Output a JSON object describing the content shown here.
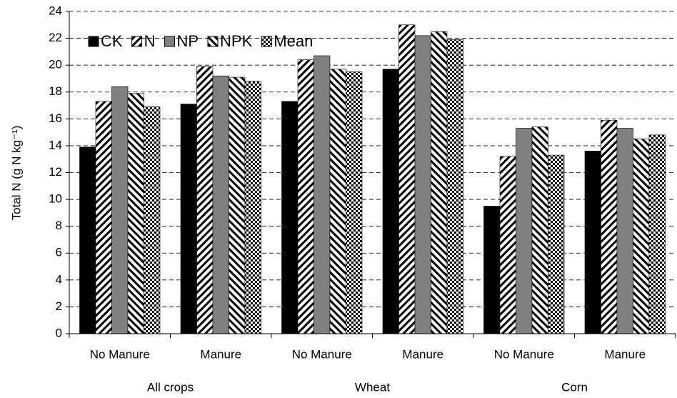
{
  "chart_data": {
    "type": "bar",
    "ylabel": "Total N (g N kg⁻¹)",
    "categories": [
      "No Manure",
      "Manure",
      "No Manure",
      "Manure",
      "No Manure",
      "Manure"
    ],
    "group_labels": [
      "All crops",
      "Wheat",
      "Corn"
    ],
    "series": [
      {
        "name": "CK",
        "color": "#000000",
        "pattern": "solid",
        "values": [
          13.9,
          17.1,
          17.3,
          19.7,
          9.5,
          13.6
        ]
      },
      {
        "name": "N",
        "color": "#000000",
        "pattern": "forward-hatch",
        "values": [
          17.3,
          19.9,
          20.4,
          23.0,
          13.2,
          15.9
        ]
      },
      {
        "name": "NP",
        "color": "#808080",
        "pattern": "solid",
        "values": [
          18.4,
          19.2,
          20.7,
          22.2,
          15.3,
          15.3
        ]
      },
      {
        "name": "NPK",
        "color": "#000000",
        "pattern": "back-hatch",
        "values": [
          17.9,
          19.1,
          19.7,
          22.5,
          15.4,
          14.5
        ]
      },
      {
        "name": "Mean",
        "color": "#000000",
        "pattern": "checker",
        "values": [
          16.9,
          18.8,
          19.5,
          21.9,
          13.3,
          14.8
        ]
      }
    ],
    "ylim": [
      0,
      24
    ],
    "yticks": [
      0,
      2,
      4,
      6,
      8,
      10,
      12,
      14,
      16,
      18,
      20,
      22,
      24
    ],
    "grid": true,
    "legend": "top-left"
  }
}
